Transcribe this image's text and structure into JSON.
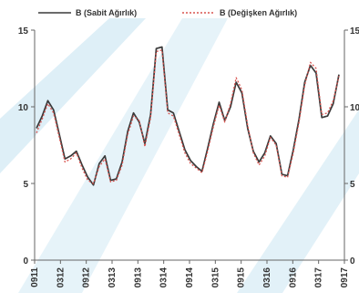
{
  "chart_data": {
    "type": "line",
    "xlabel": "",
    "ylabel": "",
    "ylim": [
      0,
      15
    ],
    "y_right_ticks": [
      "15",
      "10",
      "5",
      "0"
    ],
    "y_left_ticks": [
      0,
      5,
      10,
      15
    ],
    "x_tick_labels": [
      "0911",
      "0312",
      "0912",
      "0313",
      "0913",
      "0314",
      "0914",
      "0315",
      "0915",
      "0316",
      "0916",
      "0317",
      "0917"
    ],
    "legend_position": "top",
    "grid": false,
    "series": [
      {
        "name": "B (Sabit Ağırlık)",
        "color": "#3a3a3a",
        "dash": "solid",
        "values": [
          8.6,
          9.4,
          10.4,
          9.8,
          8.2,
          6.6,
          6.8,
          7.1,
          6.2,
          5.4,
          4.9,
          6.3,
          6.8,
          5.2,
          5.3,
          6.4,
          8.4,
          9.6,
          9.0,
          7.6,
          9.5,
          13.8,
          13.9,
          9.8,
          9.6,
          8.4,
          7.2,
          6.5,
          6.1,
          5.8,
          7.3,
          8.9,
          10.3,
          9.1,
          10.0,
          11.6,
          10.9,
          8.6,
          7.1,
          6.4,
          7.0,
          8.1,
          7.6,
          5.6,
          5.5,
          7.2,
          9.2,
          11.6,
          12.7,
          12.2,
          9.3,
          9.4,
          10.2,
          12.1
        ]
      },
      {
        "name": "B (Değişken Ağırlık)",
        "color": "#d9534f",
        "dash": "dashed",
        "values": [
          8.3,
          9.2,
          10.2,
          9.6,
          8.0,
          6.4,
          6.6,
          7.0,
          6.0,
          5.2,
          5.0,
          6.1,
          6.6,
          5.1,
          5.2,
          6.2,
          8.2,
          9.4,
          9.1,
          7.4,
          9.3,
          13.6,
          13.7,
          9.6,
          9.4,
          8.2,
          7.0,
          6.3,
          6.0,
          5.7,
          7.1,
          8.7,
          10.1,
          9.0,
          10.2,
          11.9,
          11.1,
          8.8,
          7.0,
          6.2,
          6.8,
          8.0,
          7.5,
          5.5,
          5.4,
          7.0,
          9.0,
          11.4,
          12.9,
          12.5,
          9.5,
          9.6,
          10.4,
          12.0
        ]
      }
    ]
  }
}
